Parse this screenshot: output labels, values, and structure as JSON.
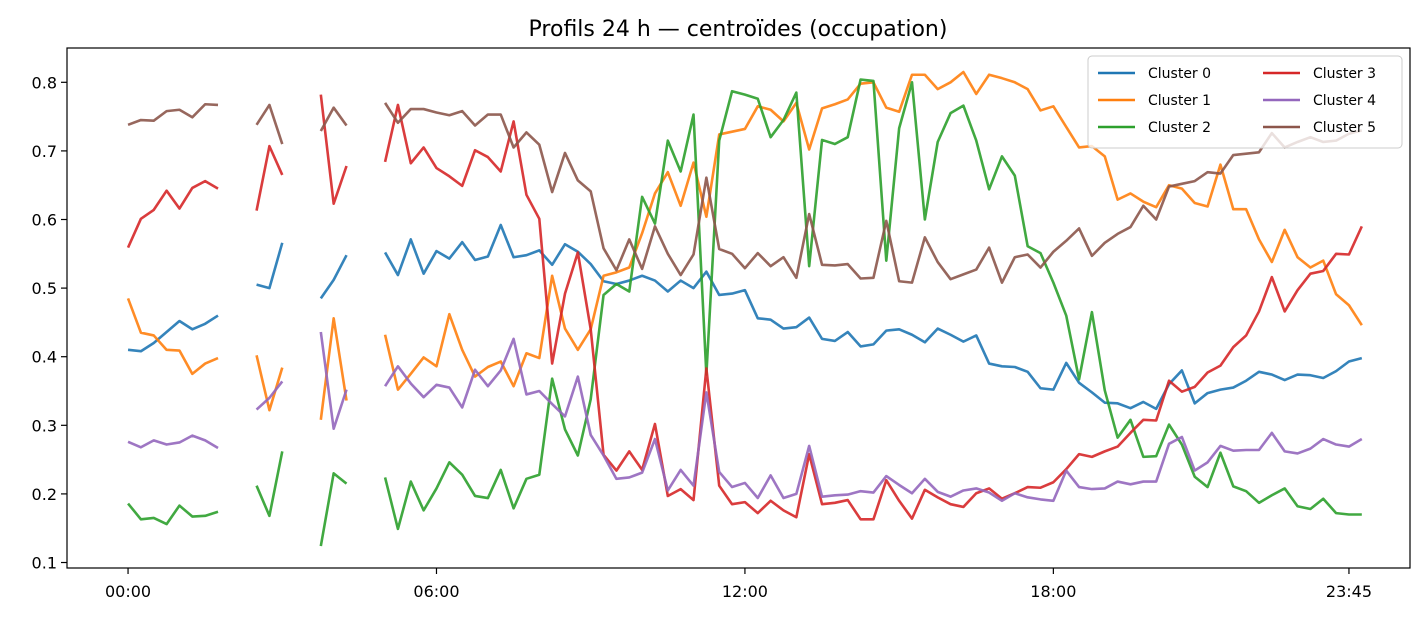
{
  "chart_data": {
    "type": "line",
    "title": "Profils 24 h — centroïdes (occupation)",
    "xlabel": "",
    "ylabel": "",
    "x_tick_labels": [
      "00:00",
      "06:00",
      "12:00",
      "18:00",
      "23:45"
    ],
    "x_tick_positions": [
      0,
      24,
      48,
      72,
      95
    ],
    "xlim": [
      -4.75,
      99.75
    ],
    "ylim": [
      0.092,
      0.85
    ],
    "y_ticks": [
      0.1,
      0.2,
      0.3,
      0.4,
      0.5,
      0.6,
      0.7,
      0.8
    ],
    "grid": false,
    "legend": {
      "position": "top-right",
      "columns": 2
    },
    "colors": [
      "#1f77b4",
      "#ff7f0e",
      "#2ca02c",
      "#d62728",
      "#9467bd",
      "#8c564b"
    ],
    "series": [
      {
        "name": "Cluster 0",
        "values": [
          0.41,
          0.408,
          0.42,
          0.436,
          0.452,
          0.44,
          0.448,
          0.46,
          null,
          null,
          0.505,
          0.5,
          0.566,
          null,
          null,
          0.485,
          0.512,
          0.548,
          null,
          null,
          0.552,
          0.519,
          0.571,
          0.521,
          0.554,
          0.543,
          0.567,
          0.541,
          0.546,
          0.592,
          0.545,
          0.548,
          0.555,
          0.534,
          0.564,
          0.553,
          0.535,
          0.51,
          0.506,
          0.511,
          0.518,
          0.511,
          0.495,
          0.511,
          0.5,
          0.524,
          0.49,
          0.492,
          0.497,
          0.456,
          0.454,
          0.441,
          0.443,
          0.457,
          0.426,
          0.423,
          0.436,
          0.415,
          0.418,
          0.438,
          0.44,
          0.432,
          0.421,
          0.441,
          0.432,
          0.422,
          0.431,
          0.39,
          0.386,
          0.385,
          0.378,
          0.354,
          0.352,
          0.391,
          0.362,
          0.348,
          0.333,
          0.332,
          0.325,
          0.334,
          0.324,
          0.36,
          0.38,
          0.332,
          0.347,
          0.352,
          0.355,
          0.365,
          0.378,
          0.374,
          0.366,
          0.374,
          0.373,
          0.369,
          0.379,
          0.393,
          0.398
        ]
      },
      {
        "name": "Cluster 1",
        "values": [
          0.485,
          0.435,
          0.431,
          0.41,
          0.409,
          0.375,
          0.39,
          0.398,
          null,
          null,
          0.402,
          0.322,
          0.384,
          null,
          null,
          0.308,
          0.456,
          0.336,
          null,
          null,
          0.432,
          0.352,
          0.375,
          0.399,
          0.386,
          0.462,
          0.41,
          0.371,
          0.385,
          0.393,
          0.357,
          0.405,
          0.398,
          0.518,
          0.441,
          0.41,
          0.44,
          0.518,
          0.523,
          0.53,
          0.58,
          0.638,
          0.669,
          0.62,
          0.683,
          0.604,
          0.724,
          0.728,
          0.732,
          0.765,
          0.76,
          0.743,
          0.77,
          0.702,
          0.762,
          0.768,
          0.775,
          0.798,
          0.8,
          0.763,
          0.757,
          0.811,
          0.811,
          0.79,
          0.8,
          0.815,
          0.783,
          0.811,
          0.806,
          0.8,
          0.79,
          0.759,
          0.765,
          0.735,
          0.705,
          0.707,
          0.692,
          0.629,
          0.638,
          0.626,
          0.618,
          0.65,
          0.645,
          0.624,
          0.619,
          0.68,
          0.615,
          0.615,
          0.571,
          0.538,
          0.585,
          0.545,
          0.53,
          0.54,
          0.491,
          0.475,
          0.446
        ]
      },
      {
        "name": "Cluster 2",
        "values": [
          0.186,
          0.163,
          0.165,
          0.156,
          0.183,
          0.167,
          0.168,
          0.174,
          null,
          null,
          0.212,
          0.168,
          0.262,
          null,
          null,
          0.124,
          0.23,
          0.215,
          null,
          null,
          0.224,
          0.149,
          0.218,
          0.176,
          0.208,
          0.246,
          0.228,
          0.197,
          0.194,
          0.235,
          0.179,
          0.222,
          0.228,
          0.368,
          0.294,
          0.256,
          0.338,
          0.49,
          0.506,
          0.495,
          0.633,
          0.594,
          0.715,
          0.67,
          0.753,
          0.374,
          0.715,
          0.787,
          0.782,
          0.776,
          0.72,
          0.745,
          0.785,
          0.532,
          0.716,
          0.71,
          0.72,
          0.804,
          0.802,
          0.54,
          0.733,
          0.8,
          0.6,
          0.713,
          0.755,
          0.766,
          0.715,
          0.644,
          0.692,
          0.664,
          0.561,
          0.551,
          0.508,
          0.46,
          0.367,
          0.465,
          0.351,
          0.282,
          0.308,
          0.254,
          0.255,
          0.301,
          0.272,
          0.225,
          0.21,
          0.26,
          0.211,
          0.204,
          0.187,
          0.198,
          0.208,
          0.182,
          0.178,
          0.193,
          0.172,
          0.17,
          0.17
        ]
      },
      {
        "name": "Cluster 3",
        "values": [
          0.559,
          0.601,
          0.614,
          0.642,
          0.616,
          0.646,
          0.656,
          0.645,
          null,
          null,
          0.613,
          0.707,
          0.665,
          null,
          null,
          0.782,
          0.623,
          0.678,
          null,
          null,
          0.684,
          0.767,
          0.682,
          0.705,
          0.675,
          0.663,
          0.649,
          0.701,
          0.691,
          0.67,
          0.743,
          0.636,
          0.601,
          0.39,
          0.492,
          0.552,
          0.44,
          0.257,
          0.234,
          0.262,
          0.235,
          0.302,
          0.197,
          0.207,
          0.191,
          0.383,
          0.212,
          0.185,
          0.188,
          0.172,
          0.19,
          0.176,
          0.166,
          0.258,
          0.185,
          0.187,
          0.191,
          0.163,
          0.163,
          0.22,
          0.19,
          0.164,
          0.206,
          0.195,
          0.185,
          0.181,
          0.201,
          0.208,
          0.193,
          0.201,
          0.21,
          0.209,
          0.217,
          0.236,
          0.258,
          0.254,
          0.262,
          0.269,
          0.289,
          0.308,
          0.307,
          0.365,
          0.349,
          0.356,
          0.377,
          0.387,
          0.414,
          0.431,
          0.466,
          0.516,
          0.466,
          0.497,
          0.521,
          0.525,
          0.55,
          0.549,
          0.59
        ]
      },
      {
        "name": "Cluster 4",
        "values": [
          0.276,
          0.268,
          0.278,
          0.272,
          0.275,
          0.285,
          0.278,
          0.267,
          null,
          null,
          0.323,
          0.34,
          0.364,
          null,
          null,
          0.436,
          0.295,
          0.352,
          null,
          null,
          0.357,
          0.386,
          0.361,
          0.341,
          0.359,
          0.355,
          0.326,
          0.381,
          0.357,
          0.38,
          0.426,
          0.345,
          0.35,
          0.331,
          0.313,
          0.371,
          0.286,
          0.256,
          0.222,
          0.224,
          0.231,
          0.28,
          0.205,
          0.235,
          0.212,
          0.348,
          0.232,
          0.21,
          0.216,
          0.194,
          0.227,
          0.194,
          0.2,
          0.27,
          0.196,
          0.198,
          0.199,
          0.204,
          0.202,
          0.226,
          0.213,
          0.201,
          0.222,
          0.203,
          0.196,
          0.205,
          0.208,
          0.202,
          0.19,
          0.201,
          0.195,
          0.192,
          0.19,
          0.234,
          0.21,
          0.207,
          0.208,
          0.218,
          0.214,
          0.218,
          0.218,
          0.273,
          0.283,
          0.234,
          0.246,
          0.27,
          0.263,
          0.264,
          0.264,
          0.289,
          0.262,
          0.259,
          0.266,
          0.28,
          0.272,
          0.269,
          0.28
        ]
      },
      {
        "name": "Cluster 5",
        "values": [
          0.738,
          0.745,
          0.744,
          0.758,
          0.76,
          0.749,
          0.768,
          0.767,
          null,
          null,
          0.738,
          0.767,
          0.71,
          null,
          null,
          0.729,
          0.763,
          0.737,
          null,
          null,
          0.77,
          0.741,
          0.761,
          0.761,
          0.756,
          0.752,
          0.758,
          0.737,
          0.753,
          0.753,
          0.705,
          0.727,
          0.709,
          0.64,
          0.697,
          0.657,
          0.641,
          0.558,
          0.526,
          0.571,
          0.528,
          0.59,
          0.55,
          0.519,
          0.549,
          0.661,
          0.557,
          0.55,
          0.529,
          0.551,
          0.532,
          0.545,
          0.515,
          0.608,
          0.534,
          0.533,
          0.535,
          0.514,
          0.515,
          0.598,
          0.51,
          0.508,
          0.574,
          0.538,
          0.513,
          0.52,
          0.527,
          0.559,
          0.508,
          0.545,
          0.549,
          0.53,
          0.553,
          0.569,
          0.587,
          0.547,
          0.566,
          0.579,
          0.589,
          0.62,
          0.6,
          0.648,
          0.652,
          0.656,
          0.669,
          0.667,
          0.694,
          0.696,
          0.698,
          0.726,
          0.705,
          0.713,
          0.72,
          0.713,
          0.715,
          0.725,
          0.73
        ]
      }
    ]
  }
}
